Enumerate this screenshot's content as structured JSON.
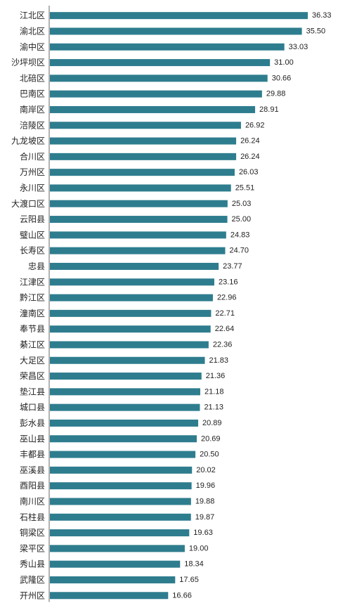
{
  "chart_data": {
    "type": "bar",
    "orientation": "horizontal",
    "categories": [
      "江北区",
      "渝北区",
      "渝中区",
      "沙坪坝区",
      "北碚区",
      "巴南区",
      "南岸区",
      "涪陵区",
      "九龙坡区",
      "合川区",
      "万州区",
      "永川区",
      "大渡口区",
      "云阳县",
      "璧山区",
      "长寿区",
      "忠县",
      "江津区",
      "黔江区",
      "潼南区",
      "奉节县",
      "綦江区",
      "大足区",
      "荣昌区",
      "垫江县",
      "城口县",
      "彭水县",
      "巫山县",
      "丰都县",
      "巫溪县",
      "酉阳县",
      "南川区",
      "石柱县",
      "铜梁区",
      "梁平区",
      "秀山县",
      "武隆区",
      "开州区"
    ],
    "values": [
      36.33,
      35.5,
      33.03,
      31.0,
      30.66,
      29.88,
      28.91,
      26.92,
      26.24,
      26.24,
      26.03,
      25.51,
      25.03,
      25.0,
      24.83,
      24.7,
      23.77,
      23.16,
      22.96,
      22.71,
      22.64,
      22.36,
      21.83,
      21.36,
      21.18,
      21.13,
      20.89,
      20.69,
      20.5,
      20.02,
      19.96,
      19.88,
      19.87,
      19.63,
      19.0,
      18.34,
      17.65,
      16.66
    ],
    "value_labels": [
      "36.33",
      "35.50",
      "33.03",
      "31.00",
      "30.66",
      "29.88",
      "28.91",
      "26.92",
      "26.24",
      "26.24",
      "26.03",
      "25.51",
      "25.03",
      "25.00",
      "24.83",
      "24.70",
      "23.77",
      "23.16",
      "22.96",
      "22.71",
      "22.64",
      "22.36",
      "21.83",
      "21.36",
      "21.18",
      "21.13",
      "20.89",
      "20.69",
      "20.50",
      "20.02",
      "19.96",
      "19.88",
      "19.87",
      "19.63",
      "19.00",
      "18.34",
      "17.65",
      "16.66"
    ],
    "title": "",
    "xlabel": "",
    "ylabel": "",
    "xlim": [
      0,
      36.33
    ],
    "grid": false,
    "legend": "none",
    "bar_color": "#2E7D8E",
    "axis_color": "#666666"
  }
}
